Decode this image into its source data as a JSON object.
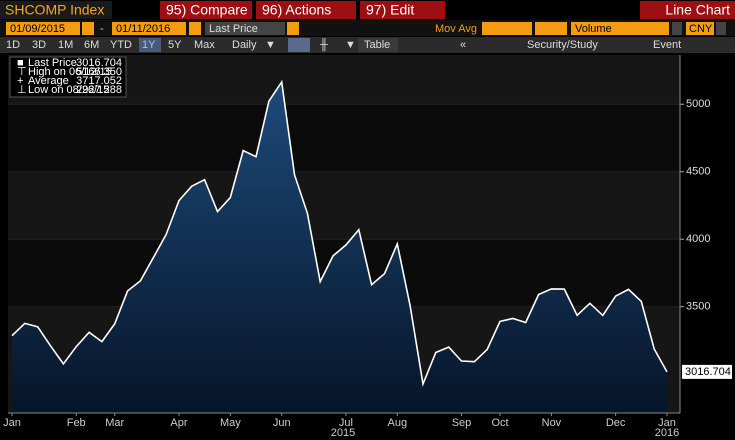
{
  "toolbar": {
    "ticker": "SHCOMP Index",
    "buttons": [
      "95) Compare",
      "96) Actions",
      "97) Edit"
    ],
    "view": "Line Chart",
    "start_date": "01/09/2015",
    "end_date": "01/11/2016",
    "field": "Last Price",
    "mov_avg": "Mov Avg",
    "volume": "Volume",
    "currency": "CNY",
    "periods": [
      "1D",
      "3D",
      "1M",
      "6M",
      "YTD",
      "1Y",
      "5Y",
      "Max"
    ],
    "frequency": "Daily",
    "table": "Table",
    "study": "Security/Study",
    "event": "Event"
  },
  "chart_data": {
    "type": "line",
    "legend_rows": [
      {
        "label": "Last Price",
        "value": "3016.704"
      },
      {
        "label": "High on 06/12/15",
        "value": "5166.350"
      },
      {
        "label": "Average",
        "value": "3717.052"
      },
      {
        "label": "Low on 08/26/15",
        "value": "2927.288"
      }
    ],
    "categories": [
      "Jan",
      null,
      null,
      null,
      null,
      "Feb",
      null,
      null,
      "Mar",
      null,
      null,
      null,
      null,
      "Apr",
      null,
      null,
      null,
      "May",
      null,
      null,
      null,
      "Jun",
      null,
      null,
      null,
      null,
      "Jul",
      null,
      null,
      null,
      "Aug",
      null,
      null,
      null,
      null,
      "Sep",
      null,
      null,
      "Oct",
      null,
      null,
      null,
      "Nov",
      null,
      null,
      null,
      null,
      "Dec",
      null,
      null,
      null,
      "Jan"
    ],
    "values": [
      3285,
      3376,
      3351,
      3210,
      3076,
      3203,
      3310,
      3241,
      3372,
      3617,
      3691,
      3863,
      4034,
      4287,
      4393,
      4441,
      4205,
      4308,
      4657,
      4611,
      5023,
      5166,
      4478,
      4192,
      3686,
      3877,
      3957,
      4070,
      3663,
      3744,
      3965,
      3507,
      2927,
      3160,
      3200,
      3097,
      3092,
      3183,
      3391,
      3412,
      3383,
      3590,
      3632,
      3630,
      3436,
      3525,
      3435,
      3578,
      3628,
      3539,
      3186,
      3016.704
    ],
    "year_labels": [
      "2015",
      "2016"
    ],
    "color": "#ffffff",
    "ylim": [
      2712,
      5365
    ],
    "yticks": [
      3500,
      4000,
      4500,
      5000
    ],
    "grid": true
  }
}
